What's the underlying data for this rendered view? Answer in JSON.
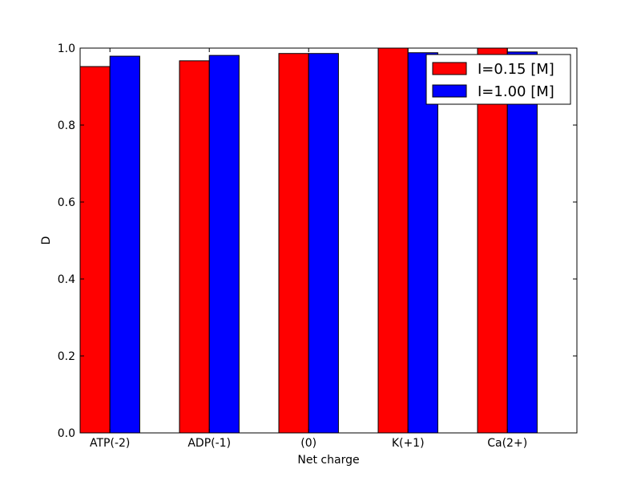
{
  "chart_data": {
    "type": "bar",
    "title": "",
    "xlabel": "Net charge",
    "ylabel": "D",
    "categories": [
      "ATP(-2)",
      "ADP(-1)",
      "(0)",
      "K(+1)",
      "Ca(2+)"
    ],
    "ylim": [
      0.0,
      1.0
    ],
    "yticks": [
      "0.0",
      "0.2",
      "0.4",
      "0.6",
      "0.8",
      "1.0"
    ],
    "grid": false,
    "legend_position": "top-right",
    "series": [
      {
        "name": "I=0.15 [M]",
        "color": "#ff0000",
        "values": [
          0.952,
          0.967,
          0.986,
          1.0,
          1.0
        ]
      },
      {
        "name": "I=1.00 [M]",
        "color": "#0000ff",
        "values": [
          0.979,
          0.981,
          0.986,
          0.988,
          0.99
        ]
      }
    ]
  }
}
